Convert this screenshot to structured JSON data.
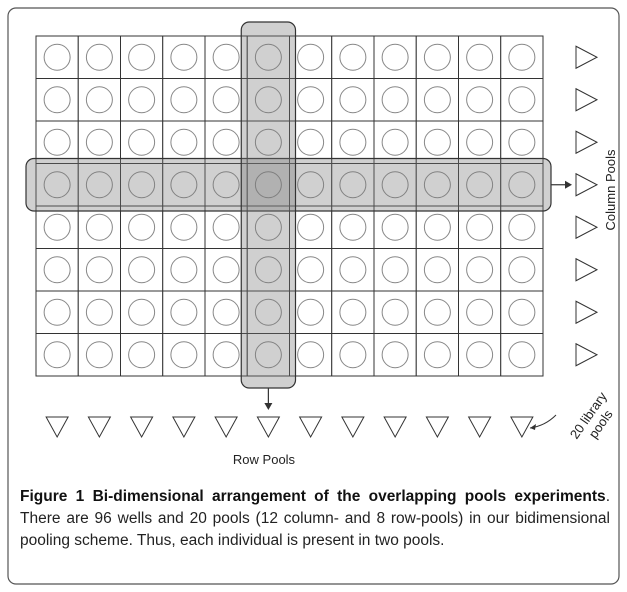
{
  "column_label": "Column Pools",
  "row_label": "Row Pools",
  "library_label": [
    "20 library",
    "pools"
  ],
  "caption": {
    "label": "Figure 1",
    "title": "Bi-dimensional arrangement of the overlapping pools experiments",
    "text": ". There are 96 wells and 20 pools (12 column- and 8 row-pools) in our bidimensional pooling scheme. Thus, each individual is present in two pools."
  }
}
